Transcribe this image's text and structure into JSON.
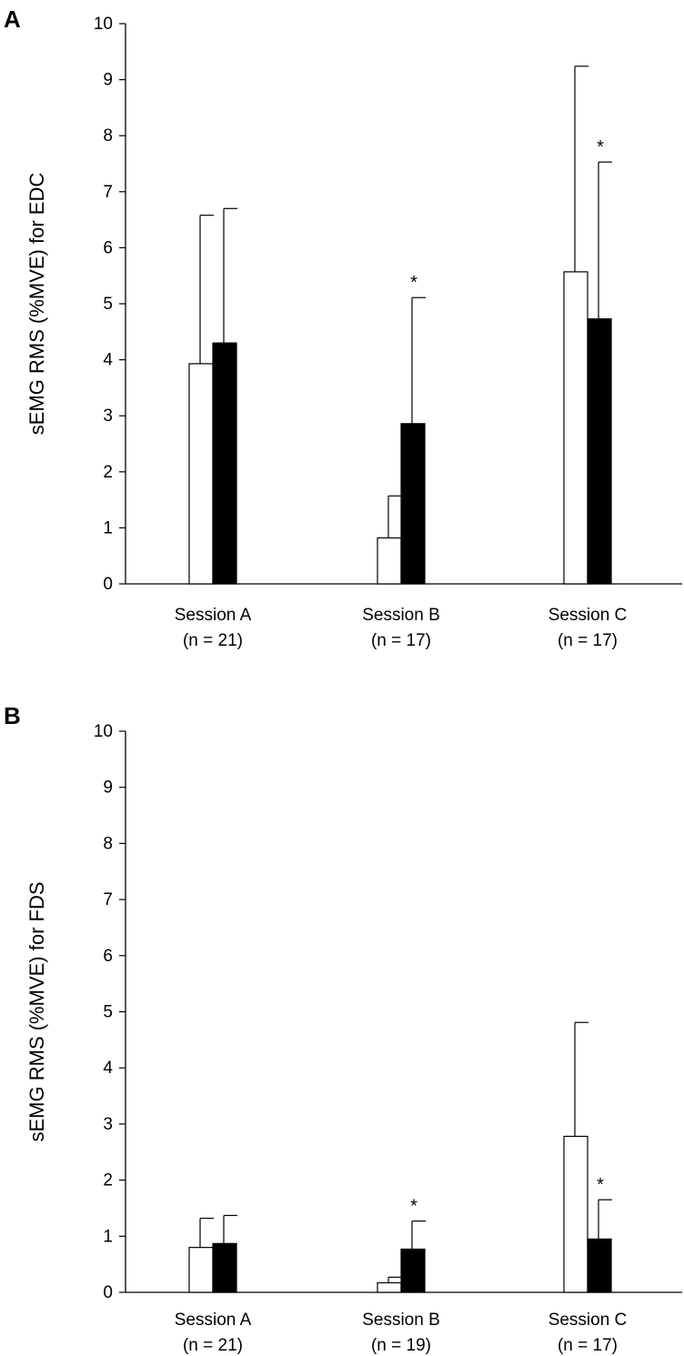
{
  "chart_data": [
    {
      "type": "bar",
      "panel_label": "A",
      "ylabel": "sEMG RMS (%MVE) for EDC",
      "ylim": [
        0,
        10
      ],
      "yticks": [
        "0",
        "1",
        "2",
        "3",
        "4",
        "5",
        "6",
        "7",
        "8",
        "9",
        "10"
      ],
      "categories": [
        {
          "name": "Session A",
          "n": "(n = 21)"
        },
        {
          "name": "Session B",
          "n": "(n = 17)"
        },
        {
          "name": "Session C",
          "n": "(n = 17)"
        }
      ],
      "series": [
        {
          "fill": "#ffffff",
          "values": [
            3.93,
            0.82,
            5.57
          ],
          "error": [
            2.65,
            0.75,
            3.67
          ]
        },
        {
          "fill": "#000000",
          "values": [
            4.3,
            2.86,
            4.73
          ],
          "error": [
            2.4,
            2.25,
            2.8
          ]
        }
      ],
      "annotations": [
        {
          "text": "*",
          "category": 1,
          "series": 1
        },
        {
          "text": "*",
          "category": 2,
          "series": 1
        }
      ]
    },
    {
      "type": "bar",
      "panel_label": "B",
      "ylabel": "sEMG RMS (%MVE) for FDS",
      "ylim": [
        0,
        10
      ],
      "yticks": [
        "0",
        "1",
        "2",
        "3",
        "4",
        "5",
        "6",
        "7",
        "8",
        "9",
        "10"
      ],
      "categories": [
        {
          "name": "Session A",
          "n": "(n = 21)"
        },
        {
          "name": "Session B",
          "n": "(n = 19)"
        },
        {
          "name": "Session C",
          "n": "(n = 17)"
        }
      ],
      "series": [
        {
          "fill": "#ffffff",
          "values": [
            0.8,
            0.17,
            2.78
          ],
          "error": [
            0.52,
            0.1,
            2.03
          ]
        },
        {
          "fill": "#000000",
          "values": [
            0.87,
            0.77,
            0.95
          ],
          "error": [
            0.5,
            0.5,
            0.7
          ]
        }
      ],
      "annotations": [
        {
          "text": "*",
          "category": 1,
          "series": 1
        },
        {
          "text": "*",
          "category": 2,
          "series": 1
        }
      ]
    }
  ]
}
